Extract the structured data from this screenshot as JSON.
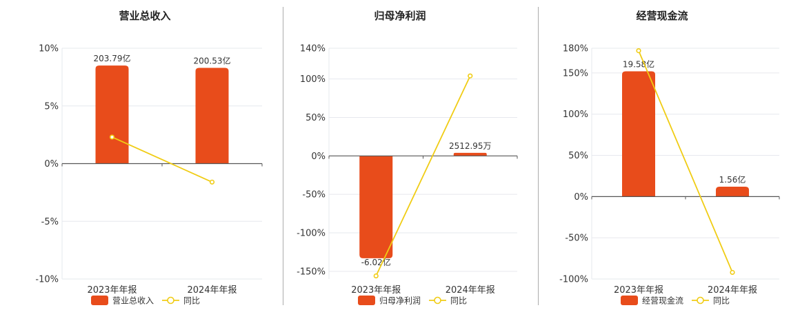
{
  "colors": {
    "bar": "#e84c1b",
    "line": "#f0cc14",
    "grid": "#e6e8ee",
    "axis": "#555555",
    "divider": "#aaaaaa"
  },
  "chart_data": [
    {
      "type": "bar",
      "title": "营业总收入",
      "categories": [
        "2023年年报",
        "2024年年报"
      ],
      "ylim": [
        -10,
        10
      ],
      "yticks": [
        10,
        5,
        0,
        -5,
        -10
      ],
      "ytick_labels": [
        "10%",
        "5%",
        "0%",
        "-5%",
        "-10%"
      ],
      "series": [
        {
          "name": "营业总收入",
          "type": "bar",
          "values": [
            8.5,
            8.3
          ],
          "labels": [
            "203.79亿",
            "200.53亿"
          ]
        },
        {
          "name": "同比",
          "type": "line",
          "values": [
            2.3,
            -1.6
          ]
        }
      ],
      "legend": "bottom"
    },
    {
      "type": "bar",
      "title": "归母净利润",
      "categories": [
        "2023年年报",
        "2024年年报"
      ],
      "ylim": [
        -160,
        140
      ],
      "yticks": [
        140,
        100,
        50,
        0,
        -50,
        -100,
        -150
      ],
      "ytick_labels": [
        "140%",
        "100%",
        "50%",
        "0%",
        "-50%",
        "-100%",
        "-150%"
      ],
      "series": [
        {
          "name": "归母净利润",
          "type": "bar",
          "values": [
            -133,
            4
          ],
          "labels": [
            "-6.02亿",
            "2512.95万"
          ]
        },
        {
          "name": "同比",
          "type": "line",
          "values": [
            -156,
            104
          ]
        }
      ],
      "legend": "bottom"
    },
    {
      "type": "bar",
      "title": "经营现金流",
      "categories": [
        "2023年年报",
        "2024年年报"
      ],
      "ylim": [
        -100,
        180
      ],
      "yticks": [
        180,
        150,
        100,
        50,
        0,
        -50,
        -100
      ],
      "ytick_labels": [
        "180%",
        "150%",
        "100%",
        "50%",
        "0%",
        "-50%",
        "-100%"
      ],
      "series": [
        {
          "name": "经营现金流",
          "type": "bar",
          "values": [
            152,
            12
          ],
          "labels": [
            "19.58亿",
            "1.56亿"
          ]
        },
        {
          "name": "同比",
          "type": "line",
          "values": [
            177,
            -92
          ]
        }
      ],
      "legend": "bottom"
    }
  ]
}
